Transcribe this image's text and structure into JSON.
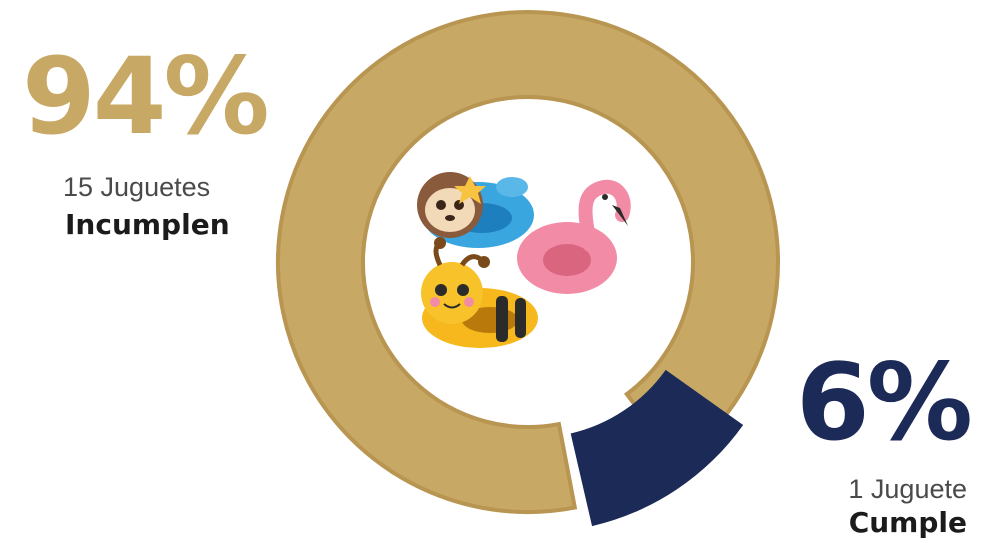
{
  "colors": {
    "fail": "#c8a865",
    "fail_edge": "#b89550",
    "pass": "#1c2a57"
  },
  "image_content": "inflatable-toys-photo",
  "chart_data": {
    "type": "pie",
    "donut": true,
    "slices": [
      {
        "label": "Incumplen",
        "value": 94,
        "display": "94%",
        "count_text": "15 Juguetes",
        "status_text": "Incumplen"
      },
      {
        "label": "Cumple",
        "value": 6,
        "display": "6%",
        "count_text": "1 Juguete",
        "status_text": "Cumple"
      }
    ]
  }
}
